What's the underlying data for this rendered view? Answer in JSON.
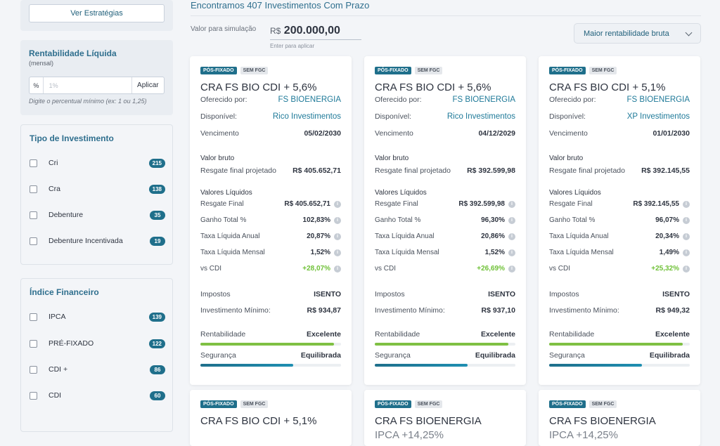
{
  "sidebar": {
    "strategies_button": "Ver Estratégias",
    "rentabilidade": {
      "title": "Rentabilidade Líquida",
      "subtitle": "(mensal)",
      "percent_symbol": "%",
      "placeholder": "1%",
      "apply_label": "Aplicar",
      "hint": "Digite o percentual mínimo (ex: 1 ou 1,25)"
    },
    "tipo": {
      "title": "Tipo de Investimento",
      "items": [
        {
          "label": "Cri",
          "count": "215"
        },
        {
          "label": "Cra",
          "count": "138"
        },
        {
          "label": "Debenture",
          "count": "35"
        },
        {
          "label": "Debenture Incentivada",
          "count": "19"
        }
      ]
    },
    "indice": {
      "title": "Índice Financeiro",
      "items": [
        {
          "label": "IPCA",
          "count": "139"
        },
        {
          "label": "PRÉ-FIXADO",
          "count": "122"
        },
        {
          "label": "CDI +",
          "count": "86"
        },
        {
          "label": "CDI",
          "count": "60"
        }
      ]
    }
  },
  "main": {
    "results_title": "Encontramos 407 Investimentos Com Prazo",
    "simulation": {
      "label": "Valor para simulação",
      "currency": "R$",
      "amount": "200.000,00",
      "hint": "Enter para aplicar"
    },
    "sort_label": "Maior rentabilidade bruta"
  },
  "labels": {
    "oferecido": "Oferecido por:",
    "disponivel": "Disponível:",
    "vencimento": "Vencimento",
    "valor_bruto": "Valor bruto",
    "resgate_projetado": "Resgate final projetado",
    "valores_liquidos": "Valores Líquidos",
    "resgate_final": "Resgate Final",
    "ganho_total": "Ganho Total %",
    "taxa_anual": "Taxa Líquida Anual",
    "taxa_mensal": "Taxa Líquida Mensal",
    "vs_cdi": "vs CDI",
    "impostos": "Impostos",
    "inv_minimo": "Investimento Mínimo:",
    "rentabilidade": "Rentabilidade",
    "seguranca": "Segurança",
    "info": "i"
  },
  "cards": [
    {
      "tag1": "PÓS-FIXADO",
      "tag2": "SEM FGC",
      "title": "CRA FS BIO CDI + 5,6%",
      "oferecido": "FS BIOENERGIA",
      "disponivel": "Rico Investimentos",
      "vencimento": "05/02/2030",
      "resgate_projetado": "R$ 405.652,71",
      "resgate_final": "R$ 405.652,71",
      "ganho_total": "102,83%",
      "taxa_anual": "20,87%",
      "taxa_mensal": "1,52%",
      "vs_cdi": "+28,07%",
      "impostos": "ISENTO",
      "inv_minimo": "R$ 934,87",
      "rentabilidade": "Excelente",
      "rentabilidade_level": 0.95,
      "seguranca": "Equilibrada",
      "seguranca_level": 0.66
    },
    {
      "tag1": "PÓS-FIXADO",
      "tag2": "SEM FGC",
      "title": "CRA FS BIO CDI + 5,6%",
      "oferecido": "FS BIOENERGIA",
      "disponivel": "Rico Investimentos",
      "vencimento": "04/12/2029",
      "resgate_projetado": "R$ 392.599,98",
      "resgate_final": "R$ 392.599,98",
      "ganho_total": "96,30%",
      "taxa_anual": "20,86%",
      "taxa_mensal": "1,52%",
      "vs_cdi": "+26,69%",
      "impostos": "ISENTO",
      "inv_minimo": "R$ 937,10",
      "rentabilidade": "Excelente",
      "rentabilidade_level": 0.95,
      "seguranca": "Equilibrada",
      "seguranca_level": 0.66
    },
    {
      "tag1": "PÓS-FIXADO",
      "tag2": "SEM FGC",
      "title": "CRA FS BIO CDI + 5,1%",
      "oferecido": "FS BIOENERGIA",
      "disponivel": "XP Investimentos",
      "vencimento": "01/01/2030",
      "resgate_projetado": "R$ 392.145,55",
      "resgate_final": "R$ 392.145,55",
      "ganho_total": "96,07%",
      "taxa_anual": "20,34%",
      "taxa_mensal": "1,49%",
      "vs_cdi": "+25,32%",
      "impostos": "ISENTO",
      "inv_minimo": "R$ 949,32",
      "rentabilidade": "Excelente",
      "rentabilidade_level": 0.95,
      "seguranca": "Equilibrada",
      "seguranca_level": 0.66
    }
  ],
  "cards_row2": [
    {
      "tag1": "PÓS-FIXADO",
      "tag2": "SEM FGC",
      "title": "CRA FS BIO CDI + 5,1%"
    },
    {
      "tag1": "PÓS-FIXADO",
      "tag2": "SEM FGC",
      "title": "CRA FS BIOENERGIA",
      "subtitle": "IPCA +14,25%"
    },
    {
      "tag1": "PÓS-FIXADO",
      "tag2": "SEM FGC",
      "title": "CRA FS BIOENERGIA",
      "subtitle": "IPCA +14,25%"
    }
  ],
  "colors": {
    "accent": "#1f6f8b",
    "green": "#6fc137",
    "rent_bar": "#7fc043",
    "seg_bar": "#1f8fb2"
  }
}
